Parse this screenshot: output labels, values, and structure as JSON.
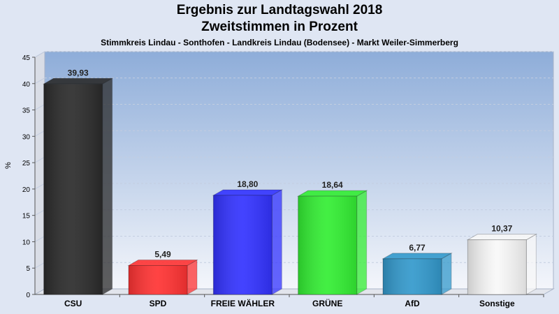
{
  "chart_data": {
    "type": "bar",
    "title": "Ergebnis zur Landtagswahl 2018",
    "subtitle": "Zweitstimmen in Prozent",
    "subsubtitle": "Stimmkreis Lindau - Sonthofen - Landkreis Lindau (Bodensee) - Markt Weiler-Simmerberg",
    "ylabel": "%",
    "ylim": [
      0,
      45
    ],
    "yticks": [
      0,
      5,
      10,
      15,
      20,
      25,
      30,
      35,
      40,
      45
    ],
    "grid": true,
    "categories": [
      "CSU",
      "SPD",
      "FREIE WÄHLER",
      "GRÜNE",
      "AfD",
      "Sonstige"
    ],
    "values": [
      39.93,
      5.49,
      18.8,
      18.64,
      6.77,
      10.37
    ],
    "value_labels": [
      "39,93",
      "5,49",
      "18,80",
      "18,64",
      "6,77",
      "10,37"
    ],
    "colors": [
      "#2b2b2b",
      "#ff3333",
      "#3333ff",
      "#33ee33",
      "#3399cc",
      "#f8f8f8"
    ]
  }
}
